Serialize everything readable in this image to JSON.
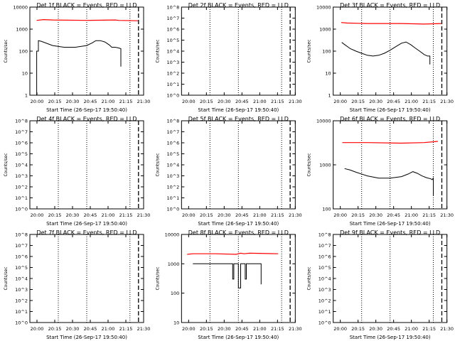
{
  "colors": {
    "background": "#ffffff",
    "axis": "#000000",
    "events": "#000000",
    "lld": "#ff0000"
  },
  "chart_data": [
    {
      "type": "line",
      "title": "Det 1f BLACK = Events, RED = LLD",
      "xlabel": "Start Time (26-Sep-17 19:50:40)",
      "ylabel": "Counts/sec",
      "scale": "log",
      "ylim": [
        1,
        10000
      ],
      "xlim": [
        0,
        1.0
      ],
      "yticks": [
        "1",
        "10",
        "100",
        "1000",
        "10000"
      ],
      "xticks": [
        "20:00",
        "20:15",
        "20:30",
        "20:45",
        "21:00",
        "21:15",
        "21:30"
      ],
      "events": [
        [
          0.06,
          1
        ],
        [
          0.06,
          100
        ],
        [
          0.075,
          100
        ],
        [
          0.075,
          300
        ],
        [
          0.1,
          280
        ],
        [
          0.2,
          180
        ],
        [
          0.3,
          150
        ],
        [
          0.4,
          150
        ],
        [
          0.5,
          180
        ],
        [
          0.55,
          240
        ],
        [
          0.58,
          300
        ],
        [
          0.62,
          300
        ],
        [
          0.66,
          260
        ],
        [
          0.7,
          190
        ],
        [
          0.72,
          150
        ],
        [
          0.75,
          150
        ],
        [
          0.78,
          140
        ],
        [
          0.8,
          130
        ],
        [
          0.8,
          20
        ]
      ],
      "lld": [
        [
          0.06,
          2500
        ],
        [
          0.12,
          2700
        ],
        [
          0.2,
          2600
        ],
        [
          0.5,
          2500
        ],
        [
          0.75,
          2600
        ],
        [
          0.78,
          2500
        ],
        [
          0.95,
          2400
        ]
      ]
    },
    {
      "type": "line",
      "title": "Det 2f BLACK = Events, RED = LLD",
      "xlabel": "Start Time (26-Sep-17 19:50:40)",
      "ylabel": "Counts/sec",
      "scale": "log",
      "ylim": [
        1,
        100000000
      ],
      "xlim": [
        0,
        1.0
      ],
      "yticks": [
        "10^0",
        "10^1",
        "10^2",
        "10^3",
        "10^4",
        "10^5",
        "10^6",
        "10^7",
        "10^8"
      ],
      "xticks": [
        "20:00",
        "20:15",
        "20:30",
        "20:45",
        "21:00",
        "21:15",
        "21:30"
      ],
      "events": [],
      "lld": []
    },
    {
      "type": "line",
      "title": "Det 3f BLACK = Events, RED = LLD",
      "xlabel": "Start Time (26-Sep-17 19:50:40)",
      "ylabel": "Counts/sec",
      "scale": "log",
      "ylim": [
        1,
        10000
      ],
      "xlim": [
        0,
        1.0
      ],
      "yticks": [
        "1",
        "10",
        "100",
        "1000",
        "10000"
      ],
      "xticks": [
        "20:00",
        "20:15",
        "20:30",
        "20:45",
        "21:00",
        "21:15",
        "21:30"
      ],
      "events": [
        [
          0.075,
          250
        ],
        [
          0.1,
          200
        ],
        [
          0.15,
          130
        ],
        [
          0.2,
          100
        ],
        [
          0.25,
          80
        ],
        [
          0.3,
          65
        ],
        [
          0.35,
          60
        ],
        [
          0.4,
          65
        ],
        [
          0.45,
          80
        ],
        [
          0.5,
          110
        ],
        [
          0.55,
          160
        ],
        [
          0.6,
          230
        ],
        [
          0.64,
          260
        ],
        [
          0.68,
          200
        ],
        [
          0.72,
          140
        ],
        [
          0.76,
          100
        ],
        [
          0.8,
          70
        ],
        [
          0.83,
          60
        ],
        [
          0.85,
          60
        ],
        [
          0.85,
          25
        ]
      ],
      "lld": [
        [
          0.07,
          2000
        ],
        [
          0.12,
          1900
        ],
        [
          0.3,
          1800
        ],
        [
          0.6,
          1800
        ],
        [
          0.8,
          1700
        ],
        [
          0.95,
          1800
        ]
      ]
    },
    {
      "type": "line",
      "title": "Det 4f BLACK = Events, RED = LLD",
      "xlabel": "Start Time (26-Sep-17 19:50:40)",
      "ylabel": "Counts/sec",
      "scale": "log",
      "ylim": [
        1,
        100000000
      ],
      "xlim": [
        0,
        1.0
      ],
      "yticks": [
        "10^0",
        "10^1",
        "10^2",
        "10^3",
        "10^4",
        "10^5",
        "10^6",
        "10^7",
        "10^8"
      ],
      "xticks": [
        "20:00",
        "20:15",
        "20:30",
        "20:45",
        "21:00",
        "21:15",
        "21:30"
      ],
      "events": [],
      "lld": []
    },
    {
      "type": "line",
      "title": "Det 5f BLACK = Events, RED = LLD",
      "xlabel": "Start Time (26-Sep-17 19:50:40)",
      "ylabel": "Counts/sec",
      "scale": "log",
      "ylim": [
        1,
        100000000
      ],
      "xlim": [
        0,
        1.0
      ],
      "yticks": [
        "10^0",
        "10^1",
        "10^2",
        "10^3",
        "10^4",
        "10^5",
        "10^6",
        "10^7",
        "10^8"
      ],
      "xticks": [
        "20:00",
        "20:15",
        "20:30",
        "20:45",
        "21:00",
        "21:15",
        "21:30"
      ],
      "events": [],
      "lld": []
    },
    {
      "type": "line",
      "title": "Det 6f BLACK = Events, RED = LLD",
      "xlabel": "Start Time (26-Sep-17 19:50:40)",
      "ylabel": "Counts/sec",
      "scale": "log",
      "ylim": [
        100,
        10000
      ],
      "xlim": [
        0,
        1.0
      ],
      "yticks": [
        "100",
        "1000",
        "10000"
      ],
      "xticks": [
        "20:00",
        "20:15",
        "20:30",
        "20:45",
        "21:00",
        "21:15",
        "21:30"
      ],
      "events": [
        [
          0.1,
          820
        ],
        [
          0.15,
          760
        ],
        [
          0.2,
          680
        ],
        [
          0.3,
          560
        ],
        [
          0.4,
          500
        ],
        [
          0.5,
          500
        ],
        [
          0.6,
          540
        ],
        [
          0.66,
          620
        ],
        [
          0.7,
          700
        ],
        [
          0.74,
          640
        ],
        [
          0.78,
          560
        ],
        [
          0.82,
          510
        ],
        [
          0.86,
          480
        ],
        [
          0.87,
          460
        ],
        [
          0.88,
          500
        ],
        [
          0.88,
          200
        ]
      ],
      "lld": [
        [
          0.08,
          3200
        ],
        [
          0.3,
          3200
        ],
        [
          0.6,
          3100
        ],
        [
          0.8,
          3200
        ],
        [
          0.92,
          3400
        ]
      ]
    },
    {
      "type": "line",
      "title": "Det 7f BLACK = Events, RED = LLD",
      "xlabel": "Start Time (26-Sep-17 19:50:40)",
      "ylabel": "Counts/sec",
      "scale": "log",
      "ylim": [
        1,
        100000000
      ],
      "xlim": [
        0,
        1.0
      ],
      "yticks": [
        "10^0",
        "10^1",
        "10^2",
        "10^3",
        "10^4",
        "10^5",
        "10^6",
        "10^7",
        "10^8"
      ],
      "xticks": [
        "20:00",
        "20:15",
        "20:30",
        "20:45",
        "21:00",
        "21:15",
        "21:30"
      ],
      "events": [],
      "lld": []
    },
    {
      "type": "line",
      "title": "Det 8f BLACK = Events, RED = LLD",
      "xlabel": "Start Time (26-Sep-17 19:50:40)",
      "ylabel": "Counts/sec",
      "scale": "log",
      "ylim": [
        10,
        10000
      ],
      "xlim": [
        0,
        1.0
      ],
      "yticks": [
        "10",
        "100",
        "1000",
        "10000"
      ],
      "xticks": [
        "20:00",
        "20:15",
        "20:30",
        "20:45",
        "21:00",
        "21:15",
        "21:30"
      ],
      "events": [
        [
          0.1,
          1000
        ],
        [
          0.45,
          1000
        ],
        [
          0.45,
          300
        ],
        [
          0.46,
          300
        ],
        [
          0.46,
          1000
        ],
        [
          0.5,
          1000
        ],
        [
          0.5,
          150
        ],
        [
          0.52,
          150
        ],
        [
          0.52,
          1000
        ],
        [
          0.56,
          1000
        ],
        [
          0.56,
          300
        ],
        [
          0.57,
          300
        ],
        [
          0.57,
          1000
        ],
        [
          0.7,
          1000
        ],
        [
          0.7,
          200
        ]
      ],
      "lld": [
        [
          0.05,
          2100
        ],
        [
          0.1,
          2200
        ],
        [
          0.3,
          2200
        ],
        [
          0.48,
          2100
        ],
        [
          0.52,
          2300
        ],
        [
          0.55,
          2200
        ],
        [
          0.6,
          2300
        ],
        [
          0.85,
          2200
        ]
      ]
    },
    {
      "type": "line",
      "title": "Det 9f BLACK = Events, RED = LLD",
      "xlabel": "Start Time (26-Sep-17 19:50:40)",
      "ylabel": "Counts/sec",
      "scale": "log",
      "ylim": [
        1,
        100000000
      ],
      "xlim": [
        0,
        1.0
      ],
      "yticks": [
        "10^0",
        "10^1",
        "10^2",
        "10^3",
        "10^4",
        "10^5",
        "10^6",
        "10^7",
        "10^8"
      ],
      "xticks": [
        "20:00",
        "20:15",
        "20:30",
        "20:45",
        "21:00",
        "21:15",
        "21:30"
      ],
      "events": [],
      "lld": []
    }
  ]
}
